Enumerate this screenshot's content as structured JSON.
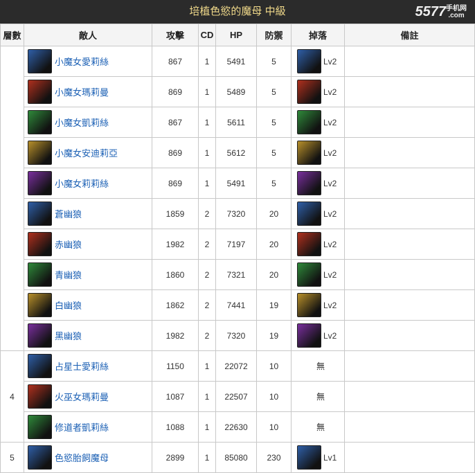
{
  "title": "培植色慾的魔母 中級",
  "logo": {
    "main": "5577",
    "sub": "手机网",
    "com": ".com"
  },
  "headers": [
    "層數",
    "敵人",
    "攻擊",
    "CD",
    "HP",
    "防禦",
    "掉落",
    "備註"
  ],
  "colors": {
    "blue": "#2f5fa8",
    "red": "#b0301e",
    "green": "#2f8a3a",
    "yellow": "#b8902a",
    "purple": "#7a2f9e"
  },
  "floors": [
    {
      "floor": "",
      "rows": [
        {
          "name": "小魔女愛莉絲",
          "atk": "867",
          "cd": "1",
          "hp": "5491",
          "def": "5",
          "drop": "Lv2",
          "attr": "blue"
        },
        {
          "name": "小魔女瑪莉曼",
          "atk": "869",
          "cd": "1",
          "hp": "5489",
          "def": "5",
          "drop": "Lv2",
          "attr": "red"
        },
        {
          "name": "小魔女凱莉絲",
          "atk": "867",
          "cd": "1",
          "hp": "5611",
          "def": "5",
          "drop": "Lv2",
          "attr": "green"
        },
        {
          "name": "小魔女安迪莉亞",
          "atk": "869",
          "cd": "1",
          "hp": "5612",
          "def": "5",
          "drop": "Lv2",
          "attr": "yellow"
        },
        {
          "name": "小魔女莉莉絲",
          "atk": "869",
          "cd": "1",
          "hp": "5491",
          "def": "5",
          "drop": "Lv2",
          "attr": "purple"
        },
        {
          "name": "蒼幽狼",
          "atk": "1859",
          "cd": "2",
          "hp": "7320",
          "def": "20",
          "drop": "Lv2",
          "attr": "blue"
        },
        {
          "name": "赤幽狼",
          "atk": "1982",
          "cd": "2",
          "hp": "7197",
          "def": "20",
          "drop": "Lv2",
          "attr": "red"
        },
        {
          "name": "青幽狼",
          "atk": "1860",
          "cd": "2",
          "hp": "7321",
          "def": "20",
          "drop": "Lv2",
          "attr": "green"
        },
        {
          "name": "白幽狼",
          "atk": "1862",
          "cd": "2",
          "hp": "7441",
          "def": "19",
          "drop": "Lv2",
          "attr": "yellow"
        },
        {
          "name": "黑幽狼",
          "atk": "1982",
          "cd": "2",
          "hp": "7320",
          "def": "19",
          "drop": "Lv2",
          "attr": "purple"
        }
      ]
    },
    {
      "floor": "4",
      "rows": [
        {
          "name": "占星士愛莉絲",
          "atk": "1150",
          "cd": "1",
          "hp": "22072",
          "def": "10",
          "drop": "無",
          "attr": "blue"
        },
        {
          "name": "火巫女瑪莉曼",
          "atk": "1087",
          "cd": "1",
          "hp": "22507",
          "def": "10",
          "drop": "無",
          "attr": "red"
        },
        {
          "name": "修道者凱莉絲",
          "atk": "1088",
          "cd": "1",
          "hp": "22630",
          "def": "10",
          "drop": "無",
          "attr": "green"
        }
      ]
    },
    {
      "floor": "5",
      "rows": [
        {
          "name": "色慾胎飼魔母",
          "atk": "2899",
          "cd": "1",
          "hp": "85080",
          "def": "230",
          "drop": "Lv1",
          "attr": "blue"
        }
      ]
    }
  ]
}
